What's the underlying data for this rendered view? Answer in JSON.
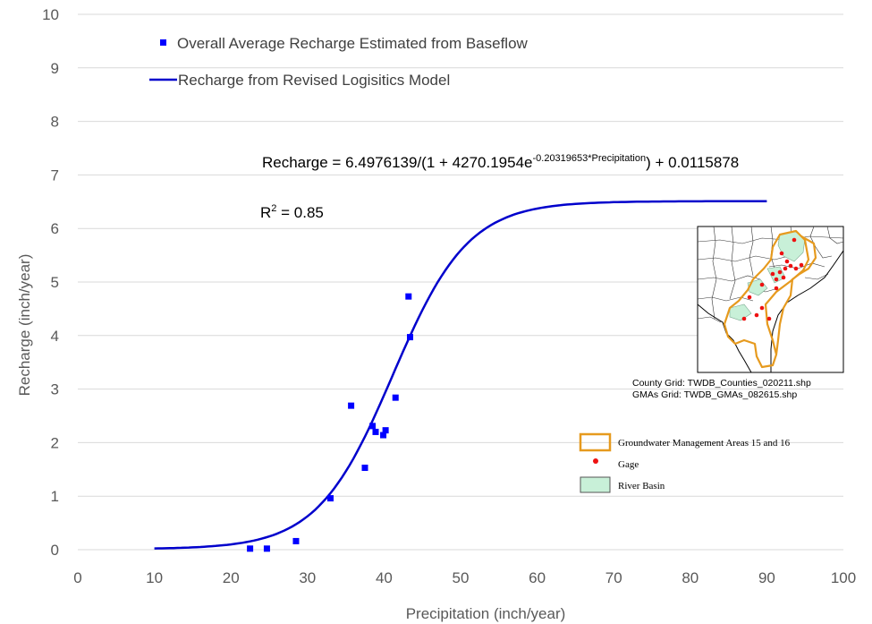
{
  "chart_data": {
    "type": "scatter",
    "xlabel": "Precipitation (inch/year)",
    "ylabel": "Recharge (inch/year)",
    "xlim": [
      0,
      100
    ],
    "ylim": [
      0,
      10
    ],
    "xticks": [
      "0",
      "10",
      "20",
      "30",
      "40",
      "50",
      "60",
      "70",
      "80",
      "90",
      "100"
    ],
    "yticks": [
      "0",
      "1",
      "2",
      "3",
      "4",
      "5",
      "6",
      "7",
      "8",
      "9",
      "10"
    ],
    "grid": "horizontal",
    "legend_placement": "top-left",
    "series": [
      {
        "name": "Overall Average Recharge Estimated from Baseflow",
        "type": "scatter",
        "color": "#0000ff",
        "marker": "square",
        "x": [
          22.5,
          24.7,
          28.5,
          33.0,
          35.7,
          37.5,
          38.5,
          38.9,
          39.9,
          40.2,
          41.5,
          43.2,
          43.4
        ],
        "y": [
          0.02,
          0.02,
          0.16,
          0.96,
          2.69,
          1.53,
          2.31,
          2.2,
          2.14,
          2.23,
          2.84,
          4.73,
          3.97
        ]
      },
      {
        "name": "Recharge from Revised Logisitics Model",
        "type": "line",
        "color": "#0000cc",
        "x_range": [
          10,
          90
        ],
        "model": {
          "L": 6.4976139,
          "a": 4270.1954,
          "k": 0.20319653,
          "c": 0.0115878
        }
      }
    ],
    "annotations": {
      "equation_prefix": "Recharge  = 6.4976139/(1 + 4270.1954e",
      "equation_exponent": "-0.20319653*Precipitation",
      "equation_suffix": ")  + 0.0115878",
      "r2_label": "R",
      "r2_exp": "2",
      "r2_value": " = 0.85"
    }
  },
  "inset_map": {
    "caption_line1": "County Grid: TWDB_Counties_020211.shp",
    "caption_line2": "GMAs Grid: TWDB_GMAs_082615.shp",
    "legend": [
      {
        "label": "Groundwater Management Areas 15 and 16",
        "color": "#e69a1e",
        "icon": "outline-box"
      },
      {
        "label": "Gage",
        "color": "#ee1111",
        "icon": "dot"
      },
      {
        "label": "River Basin",
        "color": "#c8f0d8",
        "icon": "filled-box"
      }
    ]
  }
}
